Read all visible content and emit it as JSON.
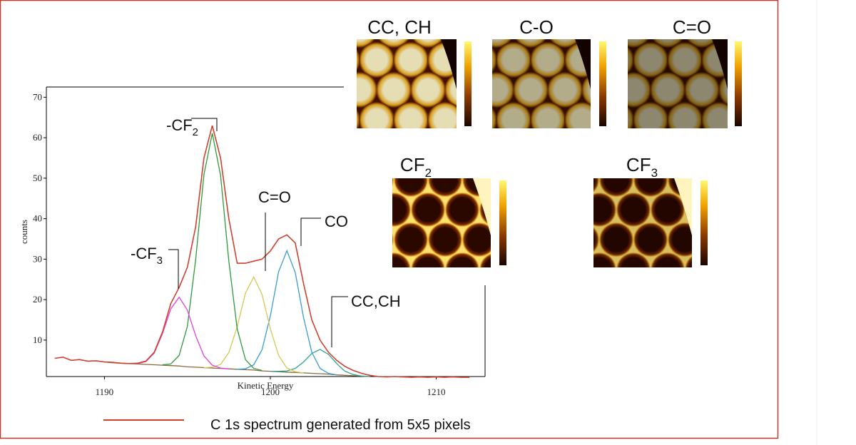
{
  "chart_data": {
    "type": "line",
    "x_label": "Kinetic Energy",
    "y_label": "counts",
    "xlim": [
      1186.5,
      1212.9
    ],
    "ylim": [
      1,
      72
    ],
    "xticks": [
      1190,
      1200,
      1210
    ],
    "yticks": [
      10,
      20,
      30,
      40,
      50,
      60,
      70
    ],
    "x": [
      1187,
      1187.5,
      1188,
      1188.5,
      1189,
      1189.5,
      1190,
      1190.5,
      1191,
      1191.5,
      1192,
      1192.5,
      1193,
      1193.5,
      1194,
      1194.5,
      1195,
      1195.5,
      1196,
      1196.5,
      1197,
      1197.5,
      1198,
      1198.5,
      1199,
      1199.5,
      1200,
      1200.5,
      1201,
      1201.5,
      1202,
      1202.5,
      1203,
      1203.5,
      1204,
      1204.5,
      1205,
      1205.5,
      1206,
      1206.5,
      1207,
      1207.5,
      1208,
      1208.5,
      1209,
      1209.5,
      1210,
      1210.5,
      1211,
      1211.5,
      1212
    ],
    "series": [
      {
        "name": "C 1s spectrum generated from 5x5 pixels",
        "color": "#d0402f",
        "values": [
          5.5,
          5.8,
          5.0,
          5.2,
          4.8,
          4.9,
          4.6,
          4.5,
          4.3,
          4.2,
          4.3,
          4.8,
          7,
          12,
          19,
          23,
          28,
          38,
          55,
          63,
          55,
          40,
          29,
          29,
          29.5,
          30,
          32,
          35,
          36,
          34,
          24,
          15,
          10,
          7,
          5,
          3.5,
          2.5,
          1.8,
          1.3,
          1.0,
          0.9,
          1.0,
          0.9,
          0.8,
          0.9,
          0.8,
          0.9,
          0.8,
          0.9,
          0.8,
          0.8
        ]
      },
      {
        "color": "#e040e0",
        "values": [
          null,
          null,
          null,
          null,
          null,
          null,
          null,
          null,
          null,
          4.2,
          4.2,
          4.7,
          6.8,
          11.6,
          17.7,
          20.6,
          17.4,
          11.1,
          6.1,
          3.8,
          3.1,
          2.9,
          null,
          null,
          null,
          null,
          null,
          null,
          null,
          null,
          null,
          null,
          null,
          null,
          null,
          null,
          null,
          null,
          null,
          null,
          null,
          null,
          null,
          null,
          null,
          null,
          null,
          null,
          null,
          null,
          null
        ]
      },
      {
        "color": "#2e9a3a",
        "values": [
          null,
          null,
          null,
          null,
          null,
          null,
          null,
          null,
          null,
          null,
          null,
          null,
          null,
          3.9,
          4.1,
          6.2,
          13.4,
          29.9,
          50.9,
          61.1,
          50.7,
          29.5,
          12.8,
          5.2,
          3.0,
          2.5,
          null,
          null,
          null,
          null,
          null,
          null,
          null,
          null,
          null,
          null,
          null,
          null,
          null,
          null,
          null,
          null,
          null,
          null,
          null,
          null,
          null,
          null,
          null,
          null,
          null
        ]
      },
      {
        "color": "#d4c850",
        "values": [
          null,
          null,
          null,
          null,
          null,
          null,
          null,
          null,
          null,
          null,
          null,
          null,
          null,
          null,
          null,
          null,
          null,
          null,
          3.2,
          3.3,
          4.0,
          6.9,
          13.3,
          21.6,
          25.6,
          21.3,
          12.8,
          6.2,
          3.1,
          2.2,
          1.9,
          null,
          null,
          null,
          null,
          null,
          null,
          null,
          null,
          null,
          null,
          null,
          null,
          null,
          null,
          null,
          null,
          null,
          null,
          null,
          null
        ]
      },
      {
        "color": "#3a9bd4",
        "values": [
          null,
          null,
          null,
          null,
          null,
          null,
          null,
          null,
          null,
          null,
          null,
          null,
          null,
          null,
          null,
          null,
          null,
          null,
          null,
          null,
          null,
          null,
          2.8,
          2.9,
          3.9,
          7.6,
          16.0,
          26.9,
          32.1,
          26.7,
          15.6,
          7.0,
          3.0,
          1.8,
          1.4,
          null,
          null,
          null,
          null,
          null,
          null,
          null,
          null,
          null,
          null,
          null,
          null,
          null,
          null,
          null,
          null
        ]
      },
      {
        "color": "#2ca58d",
        "values": [
          null,
          null,
          null,
          null,
          null,
          null,
          null,
          null,
          null,
          null,
          null,
          null,
          null,
          null,
          null,
          null,
          null,
          null,
          null,
          null,
          null,
          null,
          null,
          null,
          null,
          null,
          2.3,
          2.3,
          2.4,
          3.0,
          4.6,
          6.7,
          7.7,
          6.5,
          4.2,
          2.3,
          1.5,
          1.1,
          1.0,
          null,
          null,
          null,
          null,
          null,
          null,
          null,
          null,
          null,
          null,
          null,
          null
        ]
      },
      {
        "color": "#8a6a3a",
        "values": [
          null,
          null,
          null,
          null,
          null,
          null,
          4.6,
          4.4,
          4.3,
          4.2,
          4.1,
          4.0,
          3.9,
          3.8,
          3.7,
          3.6,
          3.4,
          3.3,
          3.2,
          3.1,
          3.0,
          2.9,
          2.8,
          2.7,
          2.6,
          2.4,
          2.3,
          2.2,
          2.1,
          2.0,
          1.9,
          1.8,
          1.7,
          1.6,
          1.4,
          1.3,
          1.2,
          1.1,
          1.0,
          null,
          null,
          null,
          null,
          null,
          null,
          null,
          null,
          null,
          null,
          null,
          null
        ]
      }
    ],
    "annotations": [
      {
        "text": "-CF",
        "sub": "2"
      },
      {
        "text": "-CF",
        "sub": "3"
      },
      {
        "text": "C=O"
      },
      {
        "text": "CO"
      },
      {
        "text": "CC,CH"
      }
    ]
  },
  "maps": [
    {
      "title": "CC, CH"
    },
    {
      "title": "C-O"
    },
    {
      "title": "C=O"
    },
    {
      "title": "CF",
      "sub": "2"
    },
    {
      "title": "CF",
      "sub": "3"
    }
  ]
}
